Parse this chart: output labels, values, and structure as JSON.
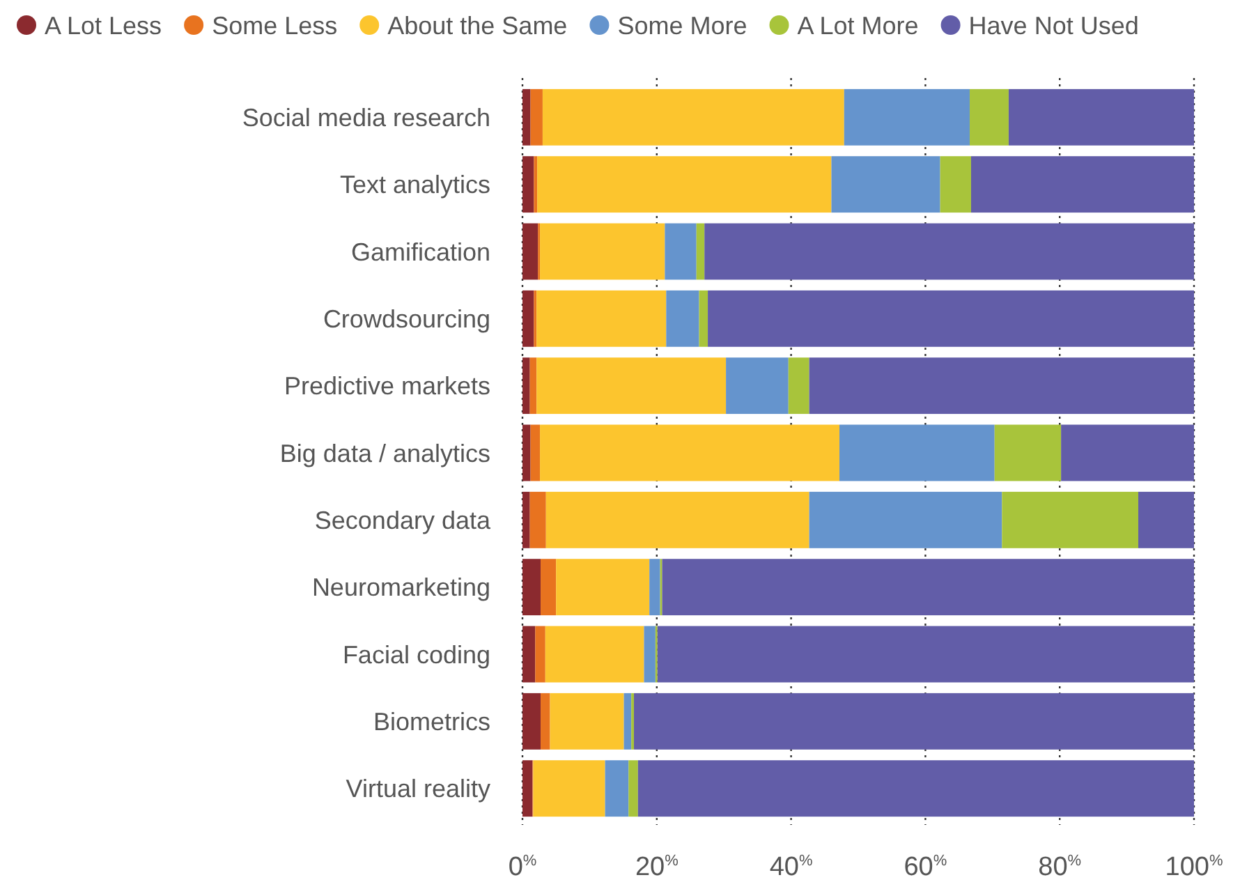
{
  "chart_data": {
    "type": "bar",
    "orientation": "horizontal",
    "stacked": true,
    "categories": [
      "Social media research",
      "Text analytics",
      "Gamification",
      "Crowdsourcing",
      "Predictive markets",
      "Big data / analytics",
      "Secondary data",
      "Neuromarketing",
      "Facial coding",
      "Biometrics",
      "Virtual reality"
    ],
    "series": [
      {
        "name": "A Lot Less",
        "color": "#8b2a2f",
        "values": [
          1.2,
          1.7,
          2.3,
          1.7,
          1.1,
          1.2,
          1.1,
          2.7,
          1.9,
          2.7,
          1.5
        ]
      },
      {
        "name": "Some Less",
        "color": "#e8731f",
        "values": [
          1.8,
          0.5,
          0.3,
          0.4,
          1.0,
          1.4,
          2.4,
          2.3,
          1.5,
          1.4,
          0.1
        ]
      },
      {
        "name": "About the Same",
        "color": "#fcc52e",
        "values": [
          44.9,
          43.8,
          18.6,
          19.3,
          28.2,
          44.6,
          39.2,
          13.9,
          14.7,
          11.0,
          10.7
        ]
      },
      {
        "name": "Some More",
        "color": "#6594cd",
        "values": [
          18.7,
          16.2,
          4.7,
          4.9,
          9.3,
          23.1,
          28.7,
          1.6,
          1.7,
          1.1,
          3.5
        ]
      },
      {
        "name": "A Lot More",
        "color": "#a8c43b",
        "values": [
          5.8,
          4.6,
          1.2,
          1.3,
          3.1,
          9.9,
          20.3,
          0.3,
          0.3,
          0.4,
          1.4
        ]
      },
      {
        "name": "Have Not Used",
        "color": "#625da8",
        "values": [
          27.6,
          33.2,
          72.9,
          72.4,
          57.3,
          19.8,
          8.3,
          79.2,
          79.9,
          83.4,
          82.8
        ]
      }
    ],
    "xlim": [
      0,
      100
    ],
    "xticks": [
      {
        "value": 0,
        "label": "0$^{%}$"
      },
      {
        "value": 20,
        "label": "20$^{%}$"
      },
      {
        "value": 40,
        "label": "40$^{%}$"
      },
      {
        "value": 60,
        "label": "60$^{%}$"
      },
      {
        "value": 80,
        "label": "80$^{%}$"
      },
      {
        "value": 100,
        "label": "100$^{%}$"
      }
    ],
    "grid": "x",
    "legend": "top",
    "marker": "circle"
  }
}
